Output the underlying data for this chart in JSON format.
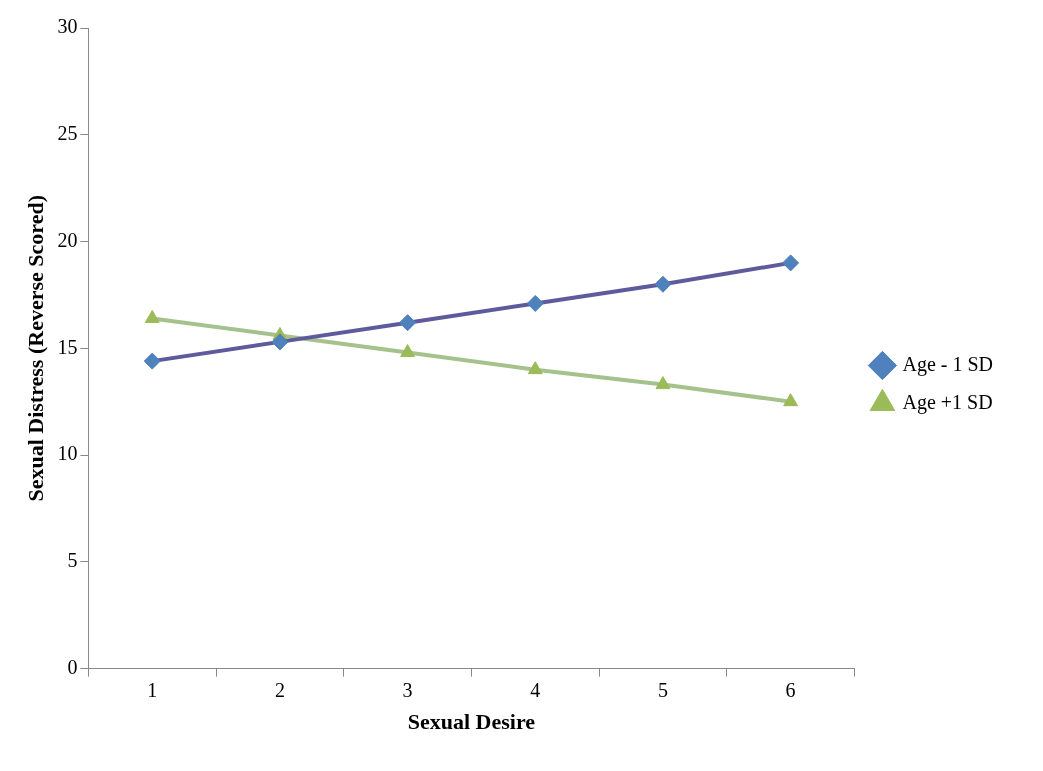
{
  "chart_data": {
    "type": "line",
    "xlabel": "Sexual Desire",
    "ylabel": "Sexual Distress (Reverse Scored)",
    "categories": [
      "1",
      "2",
      "3",
      "4",
      "5",
      "6"
    ],
    "series": [
      {
        "name": "Age - 1 SD",
        "color": "#5f5a9c",
        "colors": [
          "#4f81bd",
          "#4f81bd",
          "#4f81bd",
          "#4f81bd",
          "#4f81bd",
          "#4f81bd"
        ],
        "marker": "diamond",
        "values": [
          14.4,
          15.3,
          16.2,
          17.1,
          18.0,
          19.0
        ]
      },
      {
        "name": "Age +1 SD",
        "color": "#a5c18c",
        "colors": [
          "#9bbb59",
          "#9bbb59",
          "#9bbb59",
          "#9bbb59",
          "#9bbb59",
          "#9bbb59"
        ],
        "marker": "triangle",
        "values": [
          16.4,
          15.6,
          14.8,
          14.0,
          13.3,
          12.5
        ]
      }
    ],
    "ylim": [
      0,
      30
    ],
    "yticks": [
      0,
      5,
      10,
      15,
      20,
      25,
      30
    ],
    "grid": false,
    "legend": "right",
    "line_style": "solid"
  }
}
